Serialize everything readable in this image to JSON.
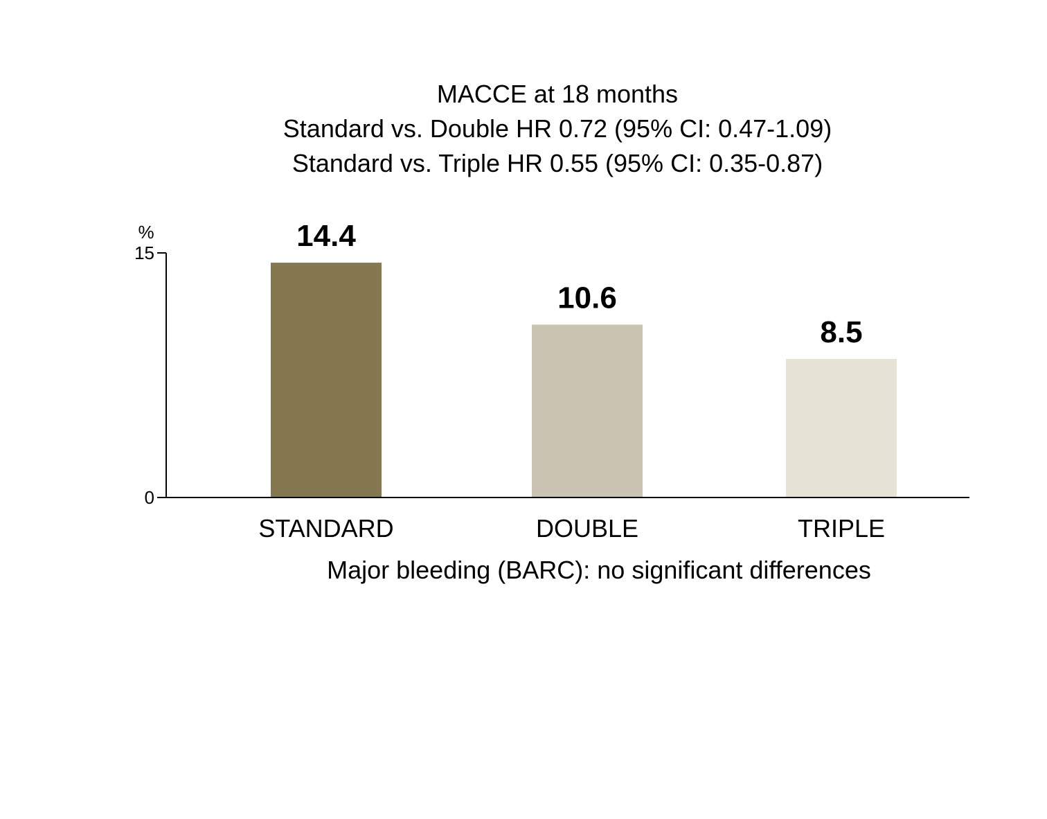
{
  "chart_data": {
    "type": "bar",
    "title_lines": [
      "MACCE at 18 months",
      "Standard vs. Double HR 0.72 (95% CI: 0.47-1.09)",
      "Standard vs. Triple HR 0.55 (95% CI: 0.35-0.87)"
    ],
    "categories": [
      "STANDARD",
      "DOUBLE",
      "TRIPLE"
    ],
    "values": [
      14.4,
      10.6,
      8.5
    ],
    "value_labels": [
      "14.4",
      "10.6",
      "8.5"
    ],
    "colors": [
      "#857850",
      "#ccc4b2",
      "#e6e2d6"
    ],
    "ylabel": "%",
    "ylim": [
      0,
      15
    ],
    "yticks": [
      {
        "value": 0,
        "label": "0"
      },
      {
        "value": 15,
        "label": "15"
      }
    ],
    "footnote": "Major bleeding (BARC): no significant differences",
    "grid": false,
    "legend": "none"
  }
}
